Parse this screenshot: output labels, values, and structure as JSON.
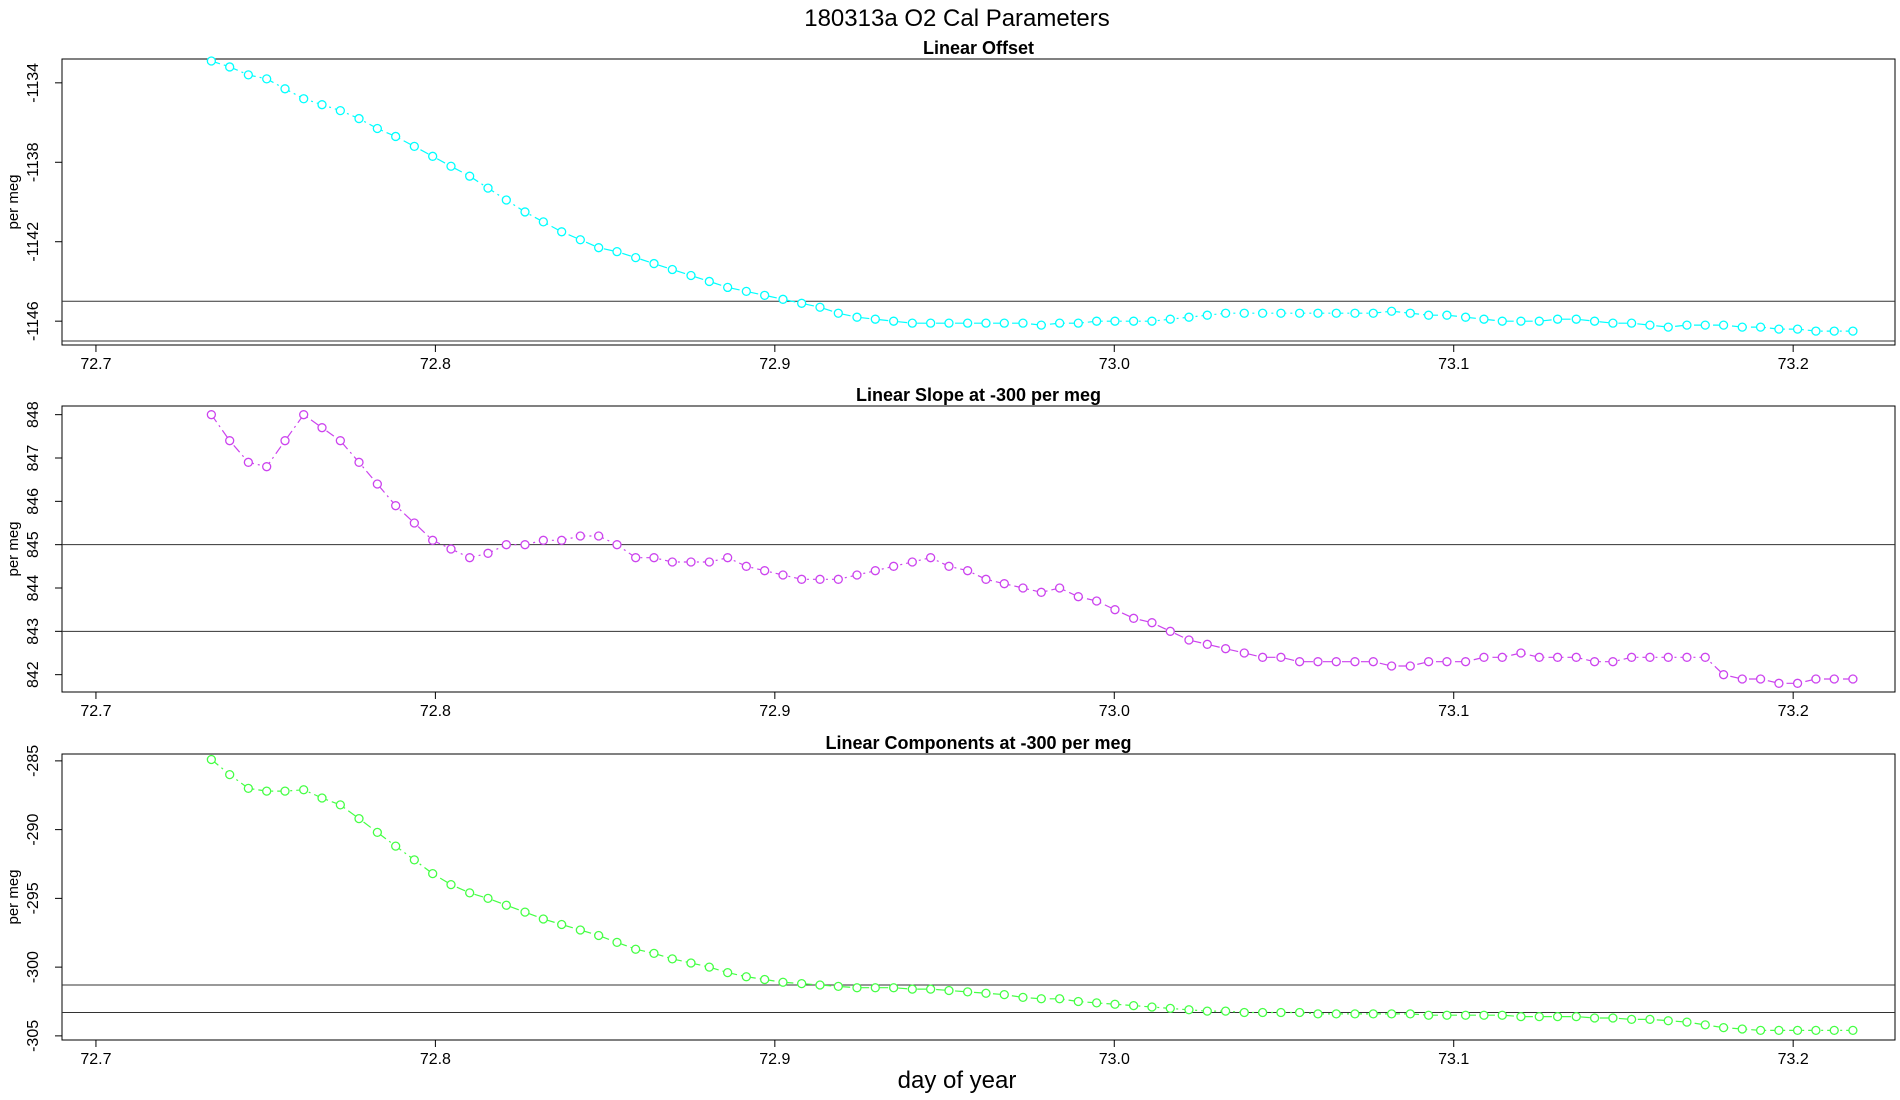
{
  "figure": {
    "title": "180313a   O2 Cal Parameters",
    "xlabel": "day of year"
  },
  "chart_data": [
    {
      "type": "line",
      "title": "Linear Offset",
      "ylabel": "per meg",
      "color": "#00ffff",
      "xlim": [
        72.69,
        73.23
      ],
      "ylim": [
        -1147.2,
        -1132.8
      ],
      "xticks": [
        72.7,
        72.8,
        72.9,
        73.0,
        73.1,
        73.2
      ],
      "xtick_labels": [
        "72.7",
        "72.8",
        "72.9",
        "73.0",
        "73.1",
        "73.2"
      ],
      "yticks": [
        -1134,
        -1138,
        -1142,
        -1146
      ],
      "ytick_labels": [
        "-1134",
        "-1138",
        "-1142",
        "-1146"
      ],
      "hlines": [
        -1145.0,
        -1147.0
      ],
      "x": [
        72.734,
        72.7394,
        72.7449,
        72.7503,
        72.7557,
        72.7612,
        72.7666,
        72.772,
        72.7775,
        72.7829,
        72.7883,
        72.7938,
        72.7992,
        72.8046,
        72.8101,
        72.8155,
        72.8209,
        72.8264,
        72.8318,
        72.8372,
        72.8427,
        72.8481,
        72.8535,
        72.859,
        72.8644,
        72.8698,
        72.8753,
        72.8807,
        72.8861,
        72.8916,
        72.897,
        72.9024,
        72.9079,
        72.9133,
        72.9187,
        72.9242,
        72.9296,
        72.935,
        72.9405,
        72.9459,
        72.9513,
        72.9568,
        72.9622,
        72.9676,
        72.9731,
        72.9785,
        72.9839,
        72.9894,
        72.9948,
        73.0002,
        73.0057,
        73.0111,
        73.0165,
        73.022,
        73.0274,
        73.0328,
        73.0383,
        73.0437,
        73.0491,
        73.0546,
        73.06,
        73.0654,
        73.0709,
        73.0763,
        73.0817,
        73.0872,
        73.0926,
        73.098,
        73.1035,
        73.1089,
        73.1143,
        73.1198,
        73.1252,
        73.1306,
        73.1361,
        73.1415,
        73.1469,
        73.1524,
        73.1578,
        73.1632,
        73.1687,
        73.1741,
        73.1795,
        73.185,
        73.1904,
        73.1958,
        73.2013,
        73.2067,
        73.2121,
        73.2176
      ],
      "y": [
        -1132.9,
        -1133.2,
        -1133.6,
        -1133.8,
        -1134.3,
        -1134.8,
        -1135.1,
        -1135.4,
        -1135.8,
        -1136.3,
        -1136.7,
        -1137.2,
        -1137.7,
        -1138.2,
        -1138.7,
        -1139.3,
        -1139.9,
        -1140.5,
        -1141.0,
        -1141.5,
        -1141.9,
        -1142.3,
        -1142.5,
        -1142.8,
        -1143.1,
        -1143.4,
        -1143.7,
        -1144.0,
        -1144.3,
        -1144.5,
        -1144.7,
        -1144.9,
        -1145.1,
        -1145.3,
        -1145.6,
        -1145.8,
        -1145.9,
        -1146.0,
        -1146.1,
        -1146.1,
        -1146.1,
        -1146.1,
        -1146.1,
        -1146.1,
        -1146.1,
        -1146.2,
        -1146.1,
        -1146.1,
        -1146.0,
        -1146.0,
        -1146.0,
        -1146.0,
        -1145.9,
        -1145.8,
        -1145.7,
        -1145.6,
        -1145.6,
        -1145.6,
        -1145.6,
        -1145.6,
        -1145.6,
        -1145.6,
        -1145.6,
        -1145.6,
        -1145.5,
        -1145.6,
        -1145.7,
        -1145.7,
        -1145.8,
        -1145.9,
        -1146.0,
        -1146.0,
        -1146.0,
        -1145.9,
        -1145.9,
        -1146.0,
        -1146.1,
        -1146.1,
        -1146.2,
        -1146.3,
        -1146.2,
        -1146.2,
        -1146.2,
        -1146.3,
        -1146.3,
        -1146.4,
        -1146.4,
        -1146.5,
        -1146.5,
        -1146.5
      ]
    },
    {
      "type": "line",
      "title": "Linear Slope at -300 per meg",
      "ylabel": "per meg",
      "color": "#cc44ee",
      "xlim": [
        72.69,
        73.23
      ],
      "ylim": [
        841.6,
        848.2
      ],
      "xticks": [
        72.7,
        72.8,
        72.9,
        73.0,
        73.1,
        73.2
      ],
      "xtick_labels": [
        "72.7",
        "72.8",
        "72.9",
        "73.0",
        "73.1",
        "73.2"
      ],
      "yticks": [
        842,
        843,
        844,
        845,
        846,
        847,
        848
      ],
      "ytick_labels": [
        "842",
        "843",
        "844",
        "845",
        "846",
        "847",
        "848"
      ],
      "hlines": [
        845.0,
        843.0
      ],
      "x": [
        72.734,
        72.7394,
        72.7449,
        72.7503,
        72.7557,
        72.7612,
        72.7666,
        72.772,
        72.7775,
        72.7829,
        72.7883,
        72.7938,
        72.7992,
        72.8046,
        72.8101,
        72.8155,
        72.8209,
        72.8264,
        72.8318,
        72.8372,
        72.8427,
        72.8481,
        72.8535,
        72.859,
        72.8644,
        72.8698,
        72.8753,
        72.8807,
        72.8861,
        72.8916,
        72.897,
        72.9024,
        72.9079,
        72.9133,
        72.9187,
        72.9242,
        72.9296,
        72.935,
        72.9405,
        72.9459,
        72.9513,
        72.9568,
        72.9622,
        72.9676,
        72.9731,
        72.9785,
        72.9839,
        72.9894,
        72.9948,
        73.0002,
        73.0057,
        73.0111,
        73.0165,
        73.022,
        73.0274,
        73.0328,
        73.0383,
        73.0437,
        73.0491,
        73.0546,
        73.06,
        73.0654,
        73.0709,
        73.0763,
        73.0817,
        73.0872,
        73.0926,
        73.098,
        73.1035,
        73.1089,
        73.1143,
        73.1198,
        73.1252,
        73.1306,
        73.1361,
        73.1415,
        73.1469,
        73.1524,
        73.1578,
        73.1632,
        73.1687,
        73.1741,
        73.1795,
        73.185,
        73.1904,
        73.1958,
        73.2013,
        73.2067,
        73.2121,
        73.2176
      ],
      "y": [
        848.0,
        847.4,
        846.9,
        846.8,
        847.4,
        848.0,
        847.7,
        847.4,
        846.9,
        846.4,
        845.9,
        845.5,
        845.1,
        844.9,
        844.7,
        844.8,
        845.0,
        845.0,
        845.1,
        845.1,
        845.2,
        845.2,
        845.0,
        844.7,
        844.7,
        844.6,
        844.6,
        844.6,
        844.7,
        844.5,
        844.4,
        844.3,
        844.2,
        844.2,
        844.2,
        844.3,
        844.4,
        844.5,
        844.6,
        844.7,
        844.5,
        844.4,
        844.2,
        844.1,
        844.0,
        843.9,
        844.0,
        843.8,
        843.7,
        843.5,
        843.3,
        843.2,
        843.0,
        842.8,
        842.7,
        842.6,
        842.5,
        842.4,
        842.4,
        842.3,
        842.3,
        842.3,
        842.3,
        842.3,
        842.2,
        842.2,
        842.3,
        842.3,
        842.3,
        842.4,
        842.4,
        842.5,
        842.4,
        842.4,
        842.4,
        842.3,
        842.3,
        842.4,
        842.4,
        842.4,
        842.4,
        842.4,
        842.0,
        841.9,
        841.9,
        841.8,
        841.8,
        841.9,
        841.9,
        841.9
      ]
    },
    {
      "type": "line",
      "title": "Linear Components at -300 per meg",
      "ylabel": "per meg",
      "color": "#44ff44",
      "xlim": [
        72.69,
        73.23
      ],
      "ylim": [
        -305.3,
        -284.5
      ],
      "xticks": [
        72.7,
        72.8,
        72.9,
        73.0,
        73.1,
        73.2
      ],
      "xtick_labels": [
        "72.7",
        "72.8",
        "72.9",
        "73.0",
        "73.1",
        "73.2"
      ],
      "yticks": [
        -285,
        -290,
        -295,
        -300,
        -305
      ],
      "ytick_labels": [
        "-285",
        "-290",
        "-295",
        "-300",
        "-305"
      ],
      "hlines": [
        -301.3,
        -303.3
      ],
      "x": [
        72.734,
        72.7394,
        72.7449,
        72.7503,
        72.7557,
        72.7612,
        72.7666,
        72.772,
        72.7775,
        72.7829,
        72.7883,
        72.7938,
        72.7992,
        72.8046,
        72.8101,
        72.8155,
        72.8209,
        72.8264,
        72.8318,
        72.8372,
        72.8427,
        72.8481,
        72.8535,
        72.859,
        72.8644,
        72.8698,
        72.8753,
        72.8807,
        72.8861,
        72.8916,
        72.897,
        72.9024,
        72.9079,
        72.9133,
        72.9187,
        72.9242,
        72.9296,
        72.935,
        72.9405,
        72.9459,
        72.9513,
        72.9568,
        72.9622,
        72.9676,
        72.9731,
        72.9785,
        72.9839,
        72.9894,
        72.9948,
        73.0002,
        73.0057,
        73.0111,
        73.0165,
        73.022,
        73.0274,
        73.0328,
        73.0383,
        73.0437,
        73.0491,
        73.0546,
        73.06,
        73.0654,
        73.0709,
        73.0763,
        73.0817,
        73.0872,
        73.0926,
        73.098,
        73.1035,
        73.1089,
        73.1143,
        73.1198,
        73.1252,
        73.1306,
        73.1361,
        73.1415,
        73.1469,
        73.1524,
        73.1578,
        73.1632,
        73.1687,
        73.1741,
        73.1795,
        73.185,
        73.1904,
        73.1958,
        73.2013,
        73.2067,
        73.2121,
        73.2176
      ],
      "y": [
        -284.9,
        -286.0,
        -287.0,
        -287.2,
        -287.2,
        -287.1,
        -287.7,
        -288.2,
        -289.2,
        -290.2,
        -291.2,
        -292.2,
        -293.2,
        -294.0,
        -294.6,
        -295.0,
        -295.5,
        -296.0,
        -296.5,
        -296.9,
        -297.3,
        -297.7,
        -298.2,
        -298.7,
        -299.0,
        -299.4,
        -299.7,
        -300.0,
        -300.4,
        -300.7,
        -300.9,
        -301.1,
        -301.2,
        -301.3,
        -301.4,
        -301.5,
        -301.5,
        -301.5,
        -301.6,
        -301.6,
        -301.7,
        -301.8,
        -301.9,
        -302.0,
        -302.2,
        -302.3,
        -302.3,
        -302.5,
        -302.6,
        -302.7,
        -302.8,
        -302.9,
        -303.0,
        -303.1,
        -303.2,
        -303.2,
        -303.3,
        -303.3,
        -303.3,
        -303.3,
        -303.4,
        -303.4,
        -303.4,
        -303.4,
        -303.4,
        -303.4,
        -303.5,
        -303.5,
        -303.5,
        -303.5,
        -303.5,
        -303.6,
        -303.6,
        -303.6,
        -303.6,
        -303.7,
        -303.7,
        -303.8,
        -303.8,
        -303.9,
        -304.0,
        -304.2,
        -304.4,
        -304.5,
        -304.6,
        -304.6,
        -304.6,
        -304.6,
        -304.6,
        -304.6
      ]
    }
  ]
}
